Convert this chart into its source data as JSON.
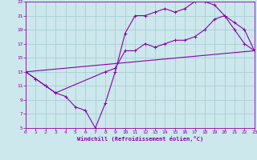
{
  "xlabel": "Windchill (Refroidissement éolien,°C)",
  "bg_color": "#cce8ec",
  "grid_color": "#a8cdd4",
  "line_color": "#8800aa",
  "xlim": [
    0,
    23
  ],
  "ylim": [
    5,
    23
  ],
  "xticks": [
    0,
    1,
    2,
    3,
    4,
    5,
    6,
    7,
    8,
    9,
    10,
    11,
    12,
    13,
    14,
    15,
    16,
    17,
    18,
    19,
    20,
    21,
    22,
    23
  ],
  "yticks": [
    5,
    7,
    9,
    11,
    13,
    15,
    17,
    19,
    21,
    23
  ],
  "line1_x": [
    0,
    1,
    2,
    3,
    4,
    5,
    6,
    7,
    8,
    9,
    10,
    11,
    12,
    13,
    14,
    15,
    16,
    17,
    18,
    19,
    20,
    21,
    22,
    23
  ],
  "line1_y": [
    13,
    12,
    11,
    10,
    9.5,
    8,
    7.5,
    5,
    8.5,
    13,
    18.5,
    21,
    21,
    21.5,
    22,
    21.5,
    22,
    23,
    23,
    22.5,
    21,
    19,
    17,
    16
  ],
  "line2_x": [
    0,
    1,
    2,
    3,
    8,
    9,
    10,
    11,
    12,
    13,
    14,
    15,
    16,
    17,
    18,
    19,
    20,
    21,
    22,
    23
  ],
  "line2_y": [
    13,
    12,
    11,
    10,
    13,
    13.5,
    16,
    16,
    17,
    16.5,
    17,
    17.5,
    17.5,
    18,
    19,
    20.5,
    21,
    20,
    19,
    16
  ],
  "line3_x": [
    0,
    23
  ],
  "line3_y": [
    13,
    16
  ]
}
